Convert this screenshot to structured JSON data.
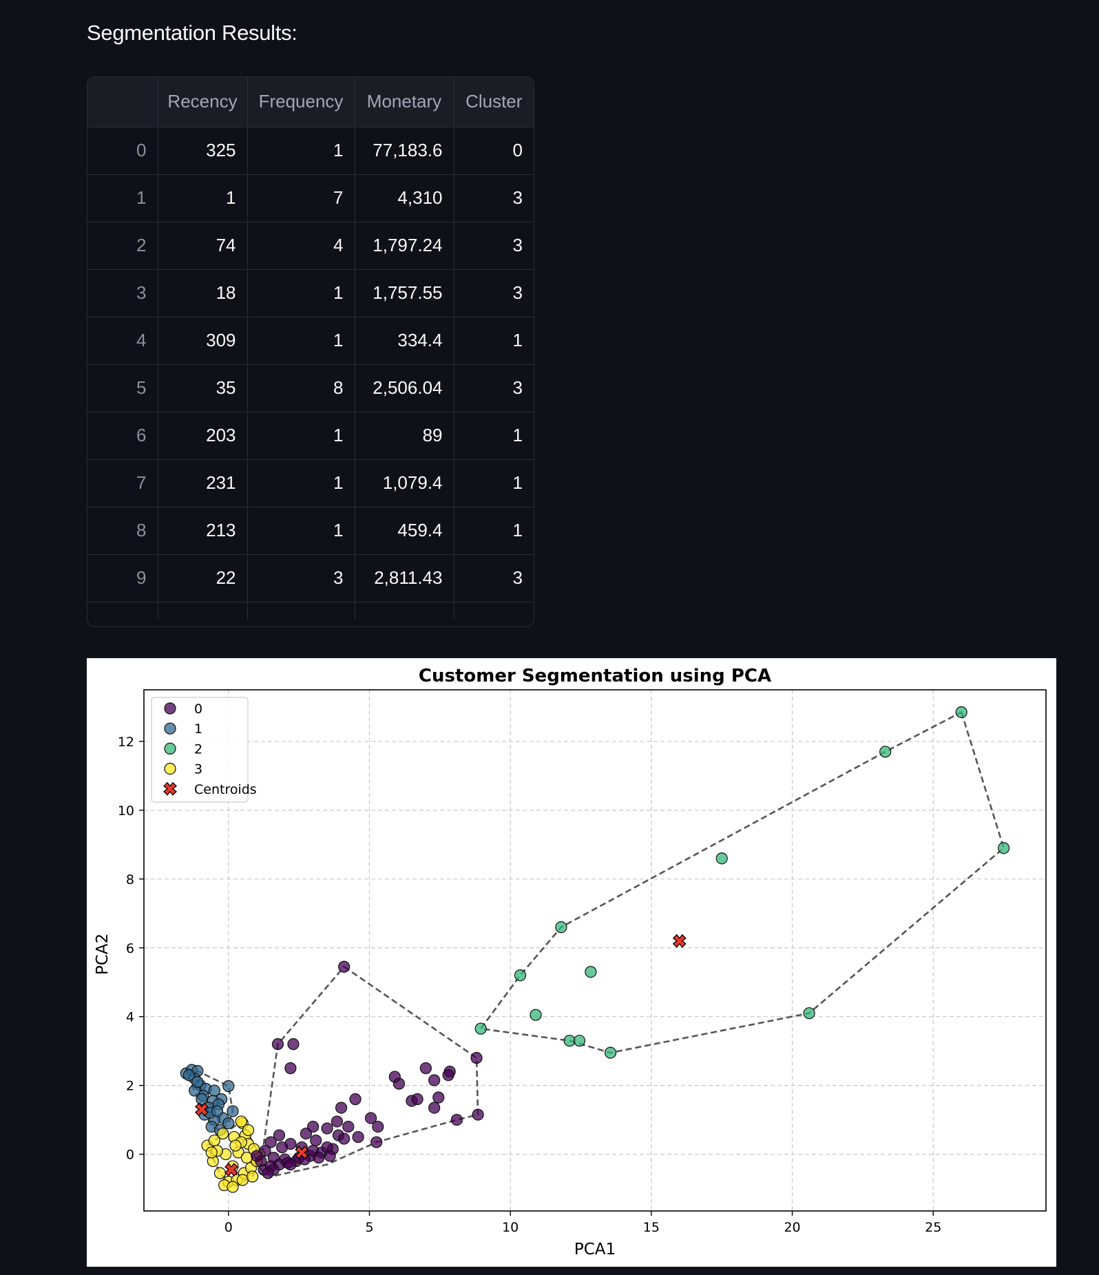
{
  "heading": "Segmentation Results:",
  "table": {
    "columns": [
      "",
      "Recency",
      "Frequency",
      "Monetary",
      "Cluster"
    ],
    "rows": [
      [
        "0",
        "325",
        "1",
        "77,183.6",
        "0"
      ],
      [
        "1",
        "1",
        "7",
        "4,310",
        "3"
      ],
      [
        "2",
        "74",
        "4",
        "1,797.24",
        "3"
      ],
      [
        "3",
        "18",
        "1",
        "1,757.55",
        "3"
      ],
      [
        "4",
        "309",
        "1",
        "334.4",
        "1"
      ],
      [
        "5",
        "35",
        "8",
        "2,506.04",
        "3"
      ],
      [
        "6",
        "203",
        "1",
        "89",
        "1"
      ],
      [
        "7",
        "231",
        "1",
        "1,079.4",
        "1"
      ],
      [
        "8",
        "213",
        "1",
        "459.4",
        "1"
      ],
      [
        "9",
        "22",
        "3",
        "2,811.43",
        "3"
      ]
    ]
  },
  "chart_data": {
    "type": "scatter",
    "title": "Customer Segmentation using PCA",
    "xlabel": "PCA1",
    "ylabel": "PCA2",
    "xlim": [
      -3,
      29
    ],
    "ylim": [
      -1.65,
      13.5
    ],
    "xticks": [
      0,
      5,
      10,
      15,
      20,
      25
    ],
    "yticks": [
      0,
      2,
      4,
      6,
      8,
      10,
      12
    ],
    "grid": true,
    "legend_position": "top-left",
    "colors": {
      "0": "#440154",
      "1": "#31688e",
      "2": "#35b779",
      "3": "#fde725",
      "centroid": "#e8392a",
      "hull": "#555555"
    },
    "series": [
      {
        "name": "0",
        "points": [
          [
            4.1,
            5.45
          ],
          [
            1.75,
            3.2
          ],
          [
            2.3,
            3.2
          ],
          [
            2.2,
            2.5
          ],
          [
            8.8,
            2.8
          ],
          [
            8.85,
            1.15
          ],
          [
            8.1,
            1.0
          ],
          [
            7.0,
            2.5
          ],
          [
            7.85,
            2.4
          ],
          [
            7.3,
            2.15
          ],
          [
            7.8,
            2.3
          ],
          [
            5.9,
            2.25
          ],
          [
            6.05,
            2.05
          ],
          [
            6.5,
            1.55
          ],
          [
            6.7,
            1.6
          ],
          [
            7.3,
            1.35
          ],
          [
            7.45,
            1.65
          ],
          [
            4.0,
            1.35
          ],
          [
            4.5,
            1.6
          ],
          [
            5.05,
            1.05
          ],
          [
            5.3,
            0.8
          ],
          [
            5.25,
            0.35
          ],
          [
            4.25,
            0.8
          ],
          [
            4.6,
            0.5
          ],
          [
            3.85,
            0.95
          ],
          [
            3.5,
            0.75
          ],
          [
            3.0,
            0.8
          ],
          [
            2.75,
            0.6
          ],
          [
            1.8,
            0.55
          ],
          [
            1.5,
            0.35
          ],
          [
            2.2,
            0.3
          ],
          [
            3.1,
            0.4
          ],
          [
            3.9,
            0.55
          ],
          [
            4.1,
            0.45
          ],
          [
            1.3,
            0.1
          ],
          [
            1.6,
            -0.1
          ],
          [
            2.0,
            -0.15
          ],
          [
            2.4,
            -0.2
          ],
          [
            2.9,
            -0.05
          ],
          [
            3.3,
            0.05
          ],
          [
            3.7,
            0.15
          ],
          [
            1.25,
            -0.45
          ],
          [
            1.5,
            -0.35
          ],
          [
            1.8,
            -0.3
          ],
          [
            2.1,
            -0.25
          ],
          [
            2.5,
            -0.1
          ],
          [
            3.0,
            0.1
          ],
          [
            3.5,
            0.2
          ],
          [
            1.15,
            -0.2
          ],
          [
            1.0,
            -0.05
          ],
          [
            1.9,
            0.2
          ],
          [
            2.6,
            0.2
          ],
          [
            3.2,
            -0.1
          ],
          [
            2.7,
            -0.15
          ],
          [
            1.6,
            -0.45
          ],
          [
            1.4,
            -0.55
          ],
          [
            2.2,
            -0.3
          ],
          [
            3.6,
            -0.05
          ]
        ]
      },
      {
        "name": "1",
        "points": [
          [
            -1.5,
            2.35
          ],
          [
            -1.3,
            2.45
          ],
          [
            -1.1,
            2.42
          ],
          [
            -1.2,
            2.2
          ],
          [
            -1.0,
            2.0
          ],
          [
            -0.8,
            1.9
          ],
          [
            -0.5,
            1.85
          ],
          [
            0.0,
            1.98
          ],
          [
            -0.25,
            1.6
          ],
          [
            -0.55,
            1.55
          ],
          [
            -0.9,
            1.7
          ],
          [
            -1.2,
            1.85
          ],
          [
            -0.7,
            1.35
          ],
          [
            -0.35,
            1.45
          ],
          [
            0.15,
            1.25
          ],
          [
            -0.2,
            1.05
          ],
          [
            -0.5,
            1.0
          ],
          [
            -0.85,
            1.15
          ],
          [
            -0.6,
            0.8
          ],
          [
            -0.3,
            0.7
          ],
          [
            0.0,
            0.9
          ],
          [
            -1.4,
            2.3
          ],
          [
            -1.1,
            2.1
          ],
          [
            -0.95,
            1.6
          ],
          [
            -0.65,
            1.2
          ],
          [
            -0.4,
            1.25
          ]
        ]
      },
      {
        "name": "2",
        "points": [
          [
            26.0,
            12.85
          ],
          [
            23.3,
            11.7
          ],
          [
            27.5,
            8.9
          ],
          [
            17.5,
            8.6
          ],
          [
            11.8,
            6.6
          ],
          [
            12.85,
            5.3
          ],
          [
            10.35,
            5.2
          ],
          [
            10.9,
            4.05
          ],
          [
            8.95,
            3.65
          ],
          [
            12.1,
            3.3
          ],
          [
            12.45,
            3.3
          ],
          [
            13.55,
            2.95
          ],
          [
            20.6,
            4.1
          ]
        ]
      },
      {
        "name": "3",
        "points": [
          [
            -0.75,
            0.25
          ],
          [
            -0.5,
            0.4
          ],
          [
            -0.2,
            0.6
          ],
          [
            0.2,
            0.5
          ],
          [
            0.5,
            0.9
          ],
          [
            0.6,
            0.55
          ],
          [
            0.7,
            0.3
          ],
          [
            0.45,
            0.35
          ],
          [
            -0.55,
            -0.2
          ],
          [
            -0.3,
            -0.55
          ],
          [
            0.0,
            -0.8
          ],
          [
            0.3,
            -0.75
          ],
          [
            0.55,
            -0.55
          ],
          [
            0.8,
            -0.4
          ],
          [
            1.0,
            -0.2
          ],
          [
            1.1,
            0.0
          ],
          [
            0.9,
            0.15
          ],
          [
            -0.1,
            0.0
          ],
          [
            0.15,
            -0.35
          ],
          [
            -0.4,
            0.1
          ],
          [
            0.35,
            0.05
          ],
          [
            0.65,
            -0.1
          ],
          [
            -0.15,
            -0.9
          ],
          [
            0.15,
            -0.95
          ],
          [
            0.5,
            -0.75
          ],
          [
            0.85,
            -0.65
          ],
          [
            -0.6,
            0.05
          ],
          [
            0.25,
            0.25
          ],
          [
            0.7,
            0.7
          ],
          [
            0.45,
            0.95
          ]
        ]
      }
    ],
    "hulls": [
      {
        "cluster": "0",
        "points": [
          [
            4.1,
            5.45
          ],
          [
            8.8,
            2.8
          ],
          [
            8.85,
            1.15
          ],
          [
            8.1,
            1.0
          ],
          [
            5.25,
            0.35
          ],
          [
            3.5,
            -0.3
          ],
          [
            1.5,
            -0.65
          ],
          [
            1.1,
            -0.4
          ],
          [
            1.25,
            0.3
          ],
          [
            1.75,
            3.2
          ]
        ]
      },
      {
        "cluster": "1",
        "points": [
          [
            -1.5,
            2.35
          ],
          [
            -1.1,
            2.42
          ],
          [
            0.0,
            1.98
          ],
          [
            0.15,
            1.25
          ],
          [
            0.0,
            0.9
          ],
          [
            -0.3,
            0.7
          ],
          [
            -0.6,
            0.8
          ]
        ]
      },
      {
        "cluster": "2",
        "points": [
          [
            26.0,
            12.85
          ],
          [
            27.5,
            8.9
          ],
          [
            20.6,
            4.1
          ],
          [
            13.55,
            2.95
          ],
          [
            12.1,
            3.3
          ],
          [
            8.95,
            3.65
          ],
          [
            10.35,
            5.2
          ],
          [
            11.8,
            6.6
          ],
          [
            23.3,
            11.7
          ]
        ]
      },
      {
        "cluster": "3",
        "points": [
          [
            -0.75,
            0.25
          ],
          [
            0.45,
            0.95
          ],
          [
            1.1,
            0.0
          ],
          [
            0.85,
            -0.65
          ],
          [
            0.15,
            -0.95
          ],
          [
            -0.3,
            -0.55
          ]
        ]
      }
    ],
    "centroids": [
      [
        2.6,
        0.05
      ],
      [
        -0.95,
        1.3
      ],
      [
        16.0,
        6.2
      ],
      [
        0.1,
        -0.45
      ]
    ],
    "legend": [
      "0",
      "1",
      "2",
      "3",
      "Centroids"
    ]
  }
}
